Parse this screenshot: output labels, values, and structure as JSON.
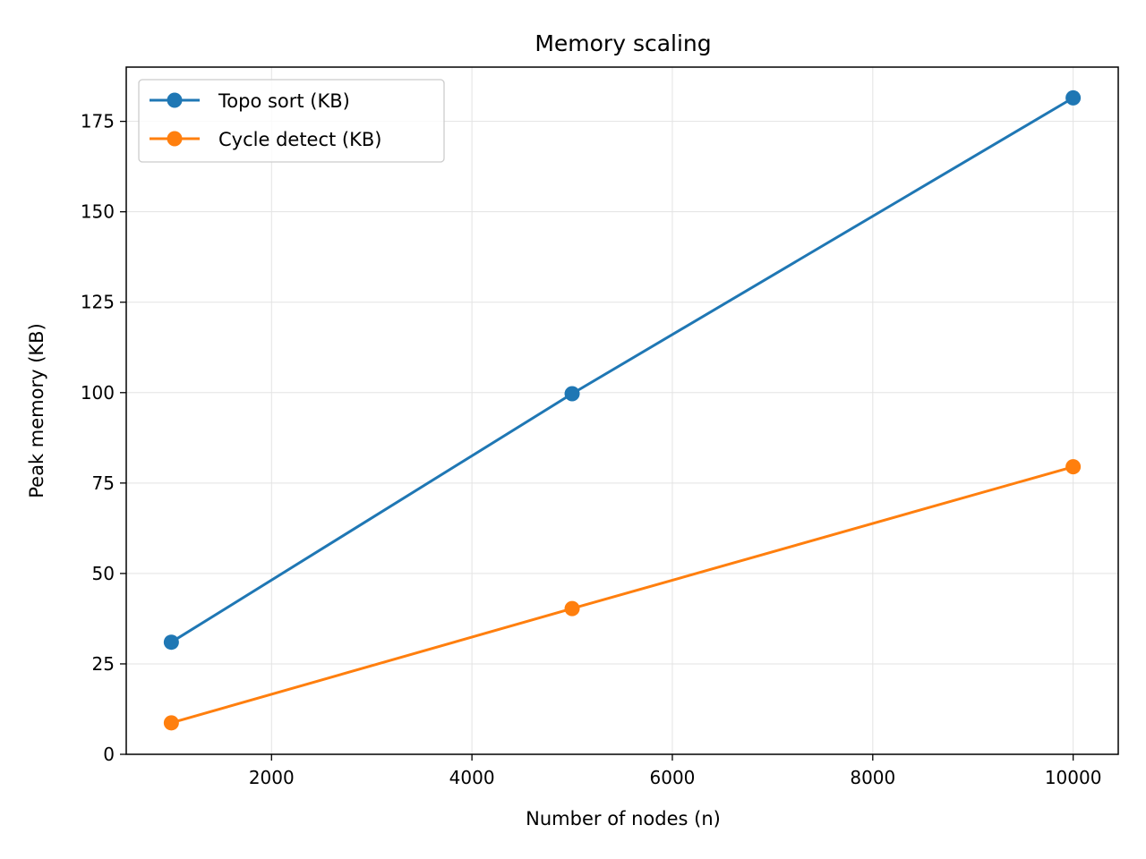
{
  "chart_data": {
    "type": "line",
    "title": "Memory scaling",
    "xlabel": "Number of nodes (n)",
    "ylabel": "Peak memory (KB)",
    "xlim": [
      550,
      10450
    ],
    "ylim": [
      0,
      190
    ],
    "xticks": [
      2000,
      4000,
      6000,
      8000,
      10000
    ],
    "yticks": [
      0,
      25,
      50,
      75,
      100,
      125,
      150,
      175
    ],
    "grid": true,
    "legend_position": "top-left",
    "series": [
      {
        "name": "Topo sort (KB)",
        "color": "#1f77b4",
        "marker": "circle",
        "x": [
          1000,
          5000,
          10000
        ],
        "values": [
          31,
          99.7,
          181.5
        ]
      },
      {
        "name": "Cycle detect (KB)",
        "color": "#ff7f0e",
        "marker": "circle",
        "x": [
          1000,
          5000,
          10000
        ],
        "values": [
          8.7,
          40.3,
          79.5
        ]
      }
    ]
  }
}
